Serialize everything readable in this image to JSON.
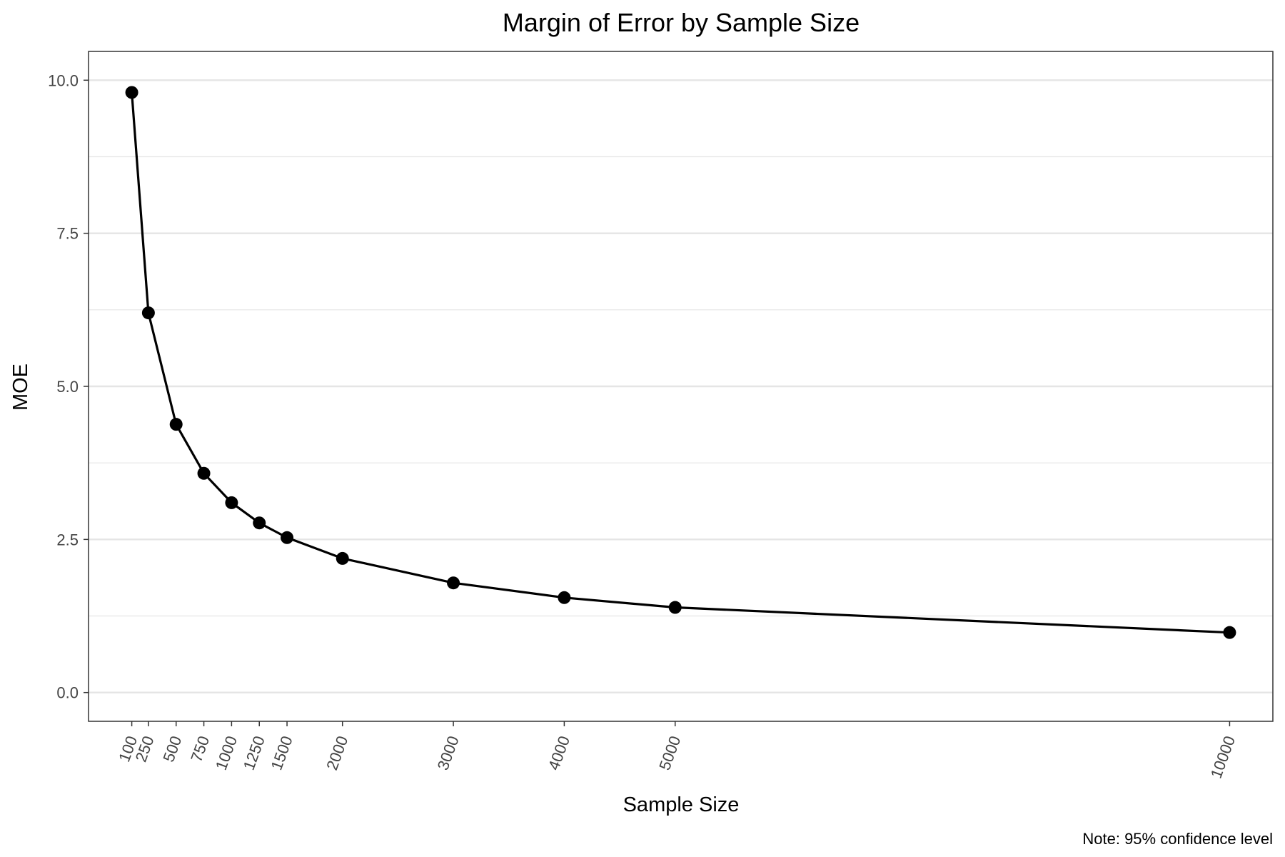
{
  "chart_data": {
    "type": "line",
    "title": "Margin of Error by Sample Size",
    "xlabel": "Sample Size",
    "ylabel": "MOE",
    "caption": "Note: 95% confidence level",
    "x": [
      100,
      250,
      500,
      750,
      1000,
      1250,
      1500,
      2000,
      3000,
      4000,
      5000,
      10000
    ],
    "y": [
      9.8,
      6.2,
      4.38,
      3.58,
      3.1,
      2.77,
      2.53,
      2.19,
      1.79,
      1.55,
      1.39,
      0.98
    ],
    "xlim": [
      -290,
      10390
    ],
    "ylim": [
      10.47,
      -0.47
    ],
    "y_reversed": true,
    "x_ticks": [
      100,
      250,
      500,
      750,
      1000,
      1250,
      1500,
      2000,
      3000,
      4000,
      5000,
      10000
    ],
    "x_tick_labels": [
      "100",
      "250",
      "500",
      "750",
      "1000",
      "1250",
      "1500",
      "2000",
      "3000",
      "4000",
      "5000",
      "10000"
    ],
    "y_ticks": [
      0,
      2.5,
      5,
      7.5,
      10
    ],
    "y_tick_labels": [
      "0.0",
      "2.5",
      "5.0",
      "7.5",
      "10.0"
    ],
    "y_minor_ticks": [
      1.25,
      3.75,
      6.25,
      8.75
    ],
    "grid": "horizontal",
    "legend": "none",
    "colors": {
      "line": "#000000",
      "point": "#000000",
      "grid": "#e5e5e5",
      "panel_border": "#333333"
    }
  }
}
